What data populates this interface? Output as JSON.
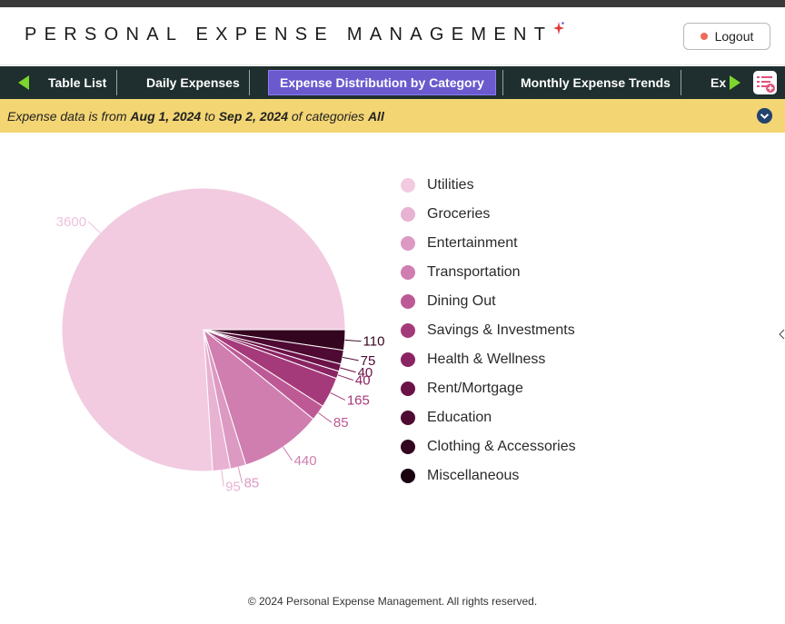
{
  "header": {
    "title": "PERSONAL EXPENSE MANAGEMENT",
    "logout_label": "Logout"
  },
  "nav": {
    "tabs": [
      {
        "label": "Table List",
        "active": false
      },
      {
        "label": "Daily Expenses",
        "active": false
      },
      {
        "label": "Expense Distribution by Category",
        "active": true
      },
      {
        "label": "Monthly Expense Trends",
        "active": false
      },
      {
        "label": "Ex",
        "active": false
      }
    ]
  },
  "filter": {
    "prefix": "Expense data is from ",
    "start": "Aug 1, 2024",
    "mid": " to ",
    "end": "Sep 2, 2024",
    "mid2": " of categories ",
    "categories": "All"
  },
  "colors": {
    "accent": "#6a5acd",
    "nav_bg": "#1f2e2e",
    "filter_bg": "#f3d574",
    "arrow": "#7bd62d"
  },
  "chart_data": {
    "type": "pie",
    "categories": [
      "Utilities",
      "Groceries",
      "Entertainment",
      "Transportation",
      "Dining Out",
      "Savings & Investments",
      "Health & Wellness",
      "Rent/Mortgage",
      "Education",
      "Clothing & Accessories",
      "Miscellaneous"
    ],
    "values": [
      3600,
      95,
      85,
      440,
      85,
      165,
      40,
      40,
      75,
      110,
      0
    ],
    "colors": [
      "#f2cbe1",
      "#e8b2d2",
      "#dc9ac3",
      "#d07daf",
      "#bd5a96",
      "#a53a7a",
      "#8a2463",
      "#6b1249",
      "#4e0a33",
      "#34051f",
      "#1a0210"
    ],
    "legend_position": "right"
  },
  "footer": {
    "text": "© 2024 Personal Expense Management. All rights reserved."
  }
}
